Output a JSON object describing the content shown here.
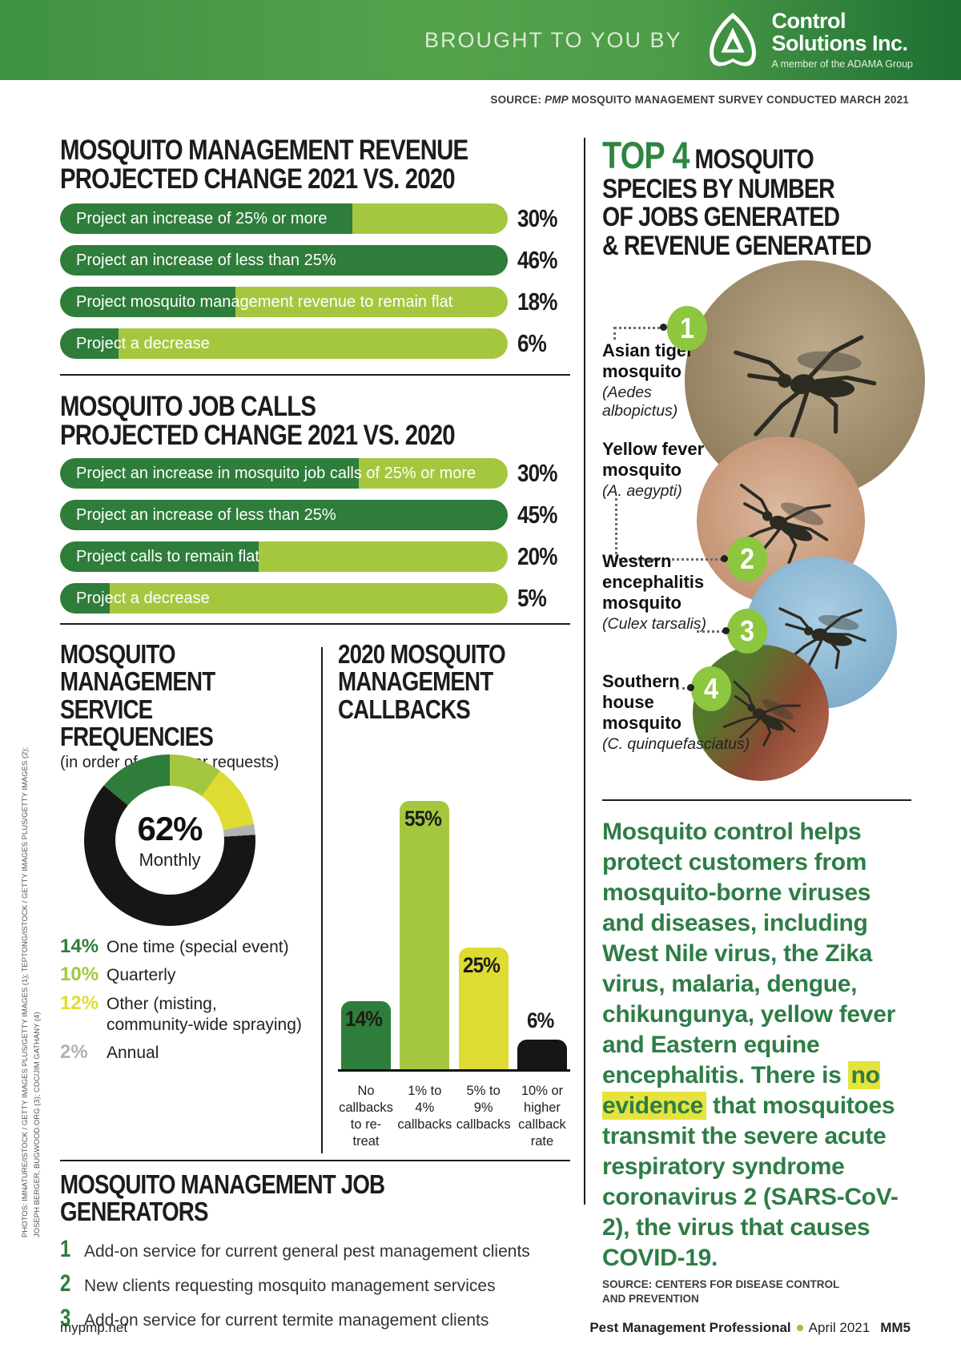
{
  "header": {
    "brought_by": "BROUGHT TO YOU BY",
    "brand_line1": "Control",
    "brand_line2": "Solutions Inc.",
    "brand_sub": "A member of the ADAMA Group",
    "source_prefix": "SOURCE: ",
    "source_pub": "PMP",
    "source_rest": " MOSQUITO MANAGEMENT SURVEY CONDUCTED MARCH 2021"
  },
  "revenue_chart": {
    "title_line1": "MOSQUITO MANAGEMENT REVENUE",
    "title_line2": "PROJECTED CHANGE 2021 VS. 2020",
    "max_value": 46,
    "bars": [
      {
        "label": "Project an increase of 25% or more",
        "value": 30,
        "pct": "30%"
      },
      {
        "label": "Project an increase of less than 25%",
        "value": 46,
        "pct": "46%"
      },
      {
        "label": "Project mosquito management revenue to remain flat",
        "value": 18,
        "pct": "18%"
      },
      {
        "label": "Project a decrease",
        "value": 6,
        "pct": "6%"
      }
    ]
  },
  "calls_chart": {
    "title_line1": "MOSQUITO JOB CALLS",
    "title_line2": "PROJECTED CHANGE 2021 VS. 2020",
    "max_value": 45,
    "bars": [
      {
        "label": "Project an increase in mosquito job calls of 25% or more",
        "value": 30,
        "pct": "30%"
      },
      {
        "label": "Project an increase of less than 25%",
        "value": 45,
        "pct": "45%"
      },
      {
        "label": "Project calls to remain flat",
        "value": 20,
        "pct": "20%"
      },
      {
        "label": "Project a decrease",
        "value": 5,
        "pct": "5%"
      }
    ]
  },
  "service_freq": {
    "title_line1": "MOSQUITO",
    "title_line2": "MANAGEMENT",
    "title_line3": "SERVICE FREQUENCIES",
    "subtitle": "(in order of customer requests)",
    "center_value": "62%",
    "center_label": "Monthly",
    "legend": [
      {
        "pct": "14%",
        "label": "One time (special event)",
        "color": "#2e7d3a"
      },
      {
        "pct": "10%",
        "label": "Quarterly",
        "color": "#a5c73f"
      },
      {
        "pct": "12%",
        "label": "Other (misting, community-wide spraying)",
        "color": "#dedc33"
      },
      {
        "pct": "2%",
        "label": "Annual",
        "color": "#b2b2b2"
      }
    ],
    "slices_draw_order": [
      {
        "value": 10,
        "color": "#a5c73f"
      },
      {
        "value": 12,
        "color": "#dedc33"
      },
      {
        "value": 2,
        "color": "#b2b2b2"
      },
      {
        "value": 62,
        "color": "#161616"
      },
      {
        "value": 14,
        "color": "#2e7d3a"
      }
    ]
  },
  "callbacks_chart": {
    "title_line1": "2020 MOSQUITO",
    "title_line2": "MANAGEMENT",
    "title_line3": "CALLBACKS",
    "max_value": 55,
    "bars": [
      {
        "value": 14,
        "pct": "14%",
        "color": "#2e7d3a",
        "label": "No\ncallbacks\nto re-treat",
        "outside": false
      },
      {
        "value": 55,
        "pct": "55%",
        "color": "#a5c73f",
        "label": "1% to\n4%\ncallbacks",
        "outside": false
      },
      {
        "value": 25,
        "pct": "25%",
        "color": "#dedc33",
        "label": "5% to\n9%\ncallbacks",
        "outside": false
      },
      {
        "value": 6,
        "pct": "6%",
        "color": "#161616",
        "label": "10% or\nhigher\ncallback\nrate",
        "outside": true
      }
    ]
  },
  "job_generators": {
    "title": "MOSQUITO MANAGEMENT JOB GENERATORS",
    "items": [
      {
        "num": "1",
        "text": "Add-on service for current general pest management clients"
      },
      {
        "num": "2",
        "text": "New clients requesting mosquito management services"
      },
      {
        "num": "3",
        "text": "Add-on service for current termite management clients"
      }
    ]
  },
  "top4": {
    "title_accent": "TOP 4",
    "title_rest": " MOSQUITO",
    "title_line2": "SPECIES BY NUMBER",
    "title_line3": "OF JOBS GENERATED",
    "title_line4": "& REVENUE GENERATED",
    "species": [
      {
        "num": "1",
        "name": "Asian tiger mosquito",
        "sci": "(Aedes albopictus)"
      },
      {
        "num": "2",
        "name": "Yellow fever mosquito",
        "sci": "(A. aegypti)"
      },
      {
        "num": "3",
        "name": "Western encephalitis mosquito",
        "sci": "(Culex tarsalis)"
      },
      {
        "num": "4",
        "name": "Southern house mosquito",
        "sci": "(C. quinquefasciatus)"
      }
    ]
  },
  "cdc": {
    "text_before": "Mosquito control helps protect customers from mosquito-borne viruses and diseases, including West Nile virus, the Zika virus, malaria, dengue, chikungunya, yellow fever and Eastern equine encephalitis. There is ",
    "highlight": "no evidence",
    "text_after": " that mosquitoes transmit the severe acute respiratory syndrome coronavirus 2 (SARS-CoV-2), the virus that causes COVID-19.",
    "source_line1": "SOURCE: CENTERS FOR DISEASE CONTROL",
    "source_line2": "AND PREVENTION"
  },
  "footer": {
    "site": "mypmp.net",
    "publication": "Pest Management Professional",
    "issue": "April 2021",
    "page": "MM5"
  },
  "credits": "PHOTOS: IMNATURE/ISTOCK / GETTY IMAGES PLUS/GETTY IMAGES (1); TEPTONG/ISTOCK / GETTY IMAGES PLUS/GETTY IMAGES (2); JOSEPH BERGER, BUGWOOD.ORG (3); CDC/JIM GATHANY (4)",
  "colors": {
    "dark_green": "#2e7d3a",
    "light_green": "#a5c73f",
    "yellow": "#dedc33",
    "gray": "#b2b2b2",
    "black": "#161616",
    "accent_green": "#2e8540",
    "badge_green": "#8dc63f",
    "highlight_yellow": "#e6e33f"
  },
  "chart_data": [
    {
      "type": "bar",
      "title": "Mosquito management revenue projected change 2021 vs. 2020",
      "categories": [
        "Project an increase of 25% or more",
        "Project an increase of less than 25%",
        "Project mosquito management revenue to remain flat",
        "Project a decrease"
      ],
      "values": [
        30,
        46,
        18,
        6
      ],
      "unit": "%",
      "orientation": "horizontal"
    },
    {
      "type": "bar",
      "title": "Mosquito job calls projected change 2021 vs. 2020",
      "categories": [
        "Project an increase in mosquito job calls of 25% or more",
        "Project an increase of less than 25%",
        "Project calls to remain flat",
        "Project a decrease"
      ],
      "values": [
        30,
        45,
        20,
        5
      ],
      "unit": "%",
      "orientation": "horizontal"
    },
    {
      "type": "pie",
      "title": "Mosquito management service frequencies (in order of customer requests)",
      "categories": [
        "Monthly",
        "One time (special event)",
        "Other (misting, community-wide spraying)",
        "Quarterly",
        "Annual"
      ],
      "values": [
        62,
        14,
        12,
        10,
        2
      ],
      "unit": "%",
      "style": "donut"
    },
    {
      "type": "bar",
      "title": "2020 mosquito management callbacks",
      "categories": [
        "No callbacks to re-treat",
        "1% to 4% callbacks",
        "5% to 9% callbacks",
        "10% or higher callback rate"
      ],
      "values": [
        14,
        55,
        25,
        6
      ],
      "unit": "%",
      "orientation": "vertical",
      "ylim": [
        0,
        55
      ]
    }
  ]
}
